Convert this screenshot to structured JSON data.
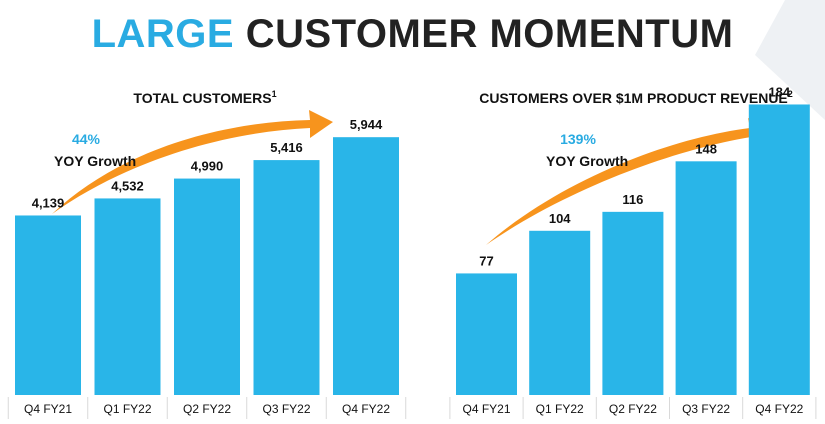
{
  "header": {
    "title_accent": "LARGE",
    "title_main": "CUSTOMER MOMENTUM"
  },
  "colors": {
    "accent": "#29ABE2",
    "bar": "#29B5E8",
    "arrow": "#F7941D",
    "text": "#111111"
  },
  "chart_data": [
    {
      "type": "bar",
      "title": "TOTAL CUSTOMERS",
      "title_sup": "1",
      "categories": [
        "Q4 FY21",
        "Q1 FY22",
        "Q2 FY22",
        "Q3 FY22",
        "Q4 FY22"
      ],
      "values": [
        4139,
        4532,
        4990,
        5416,
        5944
      ],
      "labels": [
        "4,139",
        "4,532",
        "4,990",
        "5,416",
        "5,944"
      ],
      "growth_pct": "44%",
      "growth_text": "YOY Growth",
      "ylim": [
        0,
        8300
      ],
      "xlabel": "",
      "ylabel": ""
    },
    {
      "type": "bar",
      "title": "CUSTOMERS OVER $1M PRODUCT REVENUE",
      "title_sup": "2",
      "categories": [
        "Q4 FY21",
        "Q1 FY22",
        "Q2 FY22",
        "Q3 FY22",
        "Q4 FY22"
      ],
      "values": [
        77,
        104,
        116,
        148,
        184
      ],
      "labels": [
        "77",
        "104",
        "116",
        "148",
        "184"
      ],
      "growth_pct": "139%",
      "growth_text": "YOY Growth",
      "ylim": [
        0,
        228
      ],
      "xlabel": "",
      "ylabel": ""
    }
  ]
}
